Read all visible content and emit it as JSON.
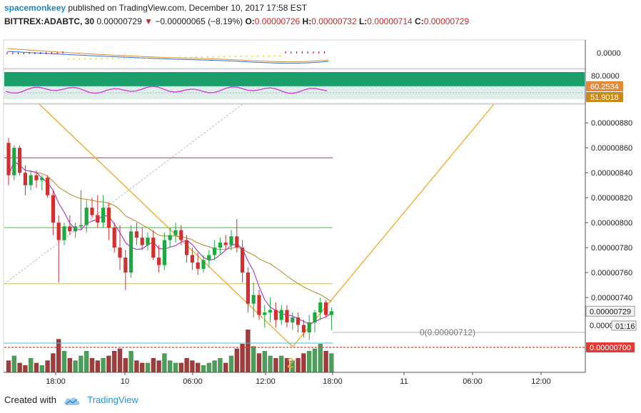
{
  "header": {
    "author": "spacemonkeey",
    "published_text": "published on TradingView.com, December 10, 2017 17:58 EST",
    "symbol": "BITTREX:ADABTC, 30",
    "last_price": "0.00000729",
    "change_arrow": "▼",
    "change": "−0.00000065 (−8.19%)",
    "o_label": "O:",
    "o_value": "0.00000726",
    "h_label": "H:",
    "h_value": "0.00000732",
    "l_label": "L:",
    "l_value": "0.00000714",
    "c_label": "C:",
    "c_value": "0.00000729"
  },
  "footer": {
    "created_with": "Created with",
    "brand": "TradingView"
  },
  "colors": {
    "bull": "#1ea83f",
    "bear": "#d32f2f",
    "vol_bull": "#2e8b3e",
    "vol_bear": "#8b1a1a",
    "orange": "#f5a623",
    "rsi": "#d040d8",
    "rsi_band": "#1a9e6a"
  },
  "chart_data": {
    "type": "candlestick",
    "y_axis": {
      "min": 6.8e-06,
      "max": 8.95e-06,
      "ticks": [
        "0.00000880",
        "0.00000860",
        "0.00000840",
        "0.00000820",
        "0.00000800",
        "0.00000780",
        "0.00000760",
        "0.00000740"
      ],
      "tick_values": [
        8.8e-06,
        8.6e-06,
        8.4e-06,
        8.2e-06,
        8e-06,
        7.8e-06,
        7.6e-06,
        7.4e-06
      ]
    },
    "x_axis": {
      "labels": [
        "18:00",
        "10",
        "06:00",
        "12:00",
        "18:00",
        "11",
        "06:00",
        "12:00"
      ]
    },
    "price_labels": {
      "last": "0.00000729",
      "countdown": "01:16",
      "support": "0.00000700",
      "zero": "0.0000"
    },
    "macd_panel": {
      "axis_label": "0.0000"
    },
    "rsi_panel": {
      "upper": "80.0000",
      "value1": "60.2534",
      "value2": "51.9018"
    },
    "annotations": {
      "fib_text": "0(0.00000712)",
      "wave_label": "2"
    },
    "horizontal_levels": {
      "red": 8.52e-06,
      "green": 7.96e-06,
      "yellow": 7.51e-06,
      "support": 7e-06,
      "fib0": 7.12e-06
    },
    "candles": [
      {
        "o": 864,
        "h": 868,
        "l": 830,
        "c": 838
      },
      {
        "o": 838,
        "h": 862,
        "l": 834,
        "c": 860
      },
      {
        "o": 860,
        "h": 862,
        "l": 838,
        "c": 840
      },
      {
        "o": 840,
        "h": 846,
        "l": 822,
        "c": 830
      },
      {
        "o": 830,
        "h": 842,
        "l": 826,
        "c": 838
      },
      {
        "o": 838,
        "h": 842,
        "l": 828,
        "c": 834
      },
      {
        "o": 834,
        "h": 838,
        "l": 826,
        "c": 836
      },
      {
        "o": 836,
        "h": 838,
        "l": 820,
        "c": 822
      },
      {
        "o": 822,
        "h": 826,
        "l": 790,
        "c": 800
      },
      {
        "o": 800,
        "h": 806,
        "l": 752,
        "c": 786
      },
      {
        "o": 786,
        "h": 800,
        "l": 782,
        "c": 797
      },
      {
        "o": 797,
        "h": 806,
        "l": 790,
        "c": 793
      },
      {
        "o": 793,
        "h": 800,
        "l": 788,
        "c": 797
      },
      {
        "o": 797,
        "h": 826,
        "l": 794,
        "c": 798
      },
      {
        "o": 798,
        "h": 818,
        "l": 792,
        "c": 812
      },
      {
        "o": 812,
        "h": 820,
        "l": 804,
        "c": 806
      },
      {
        "o": 806,
        "h": 822,
        "l": 796,
        "c": 800
      },
      {
        "o": 800,
        "h": 822,
        "l": 796,
        "c": 812
      },
      {
        "o": 812,
        "h": 816,
        "l": 786,
        "c": 796
      },
      {
        "o": 796,
        "h": 800,
        "l": 776,
        "c": 780
      },
      {
        "o": 780,
        "h": 798,
        "l": 762,
        "c": 772
      },
      {
        "o": 772,
        "h": 778,
        "l": 746,
        "c": 760
      },
      {
        "o": 760,
        "h": 798,
        "l": 756,
        "c": 793
      },
      {
        "o": 793,
        "h": 800,
        "l": 782,
        "c": 788
      },
      {
        "o": 788,
        "h": 796,
        "l": 778,
        "c": 782
      },
      {
        "o": 782,
        "h": 792,
        "l": 778,
        "c": 788
      },
      {
        "o": 788,
        "h": 794,
        "l": 770,
        "c": 772
      },
      {
        "o": 772,
        "h": 782,
        "l": 760,
        "c": 766
      },
      {
        "o": 766,
        "h": 792,
        "l": 762,
        "c": 786
      },
      {
        "o": 786,
        "h": 796,
        "l": 780,
        "c": 790
      },
      {
        "o": 790,
        "h": 800,
        "l": 784,
        "c": 794
      },
      {
        "o": 794,
        "h": 798,
        "l": 782,
        "c": 786
      },
      {
        "o": 786,
        "h": 790,
        "l": 768,
        "c": 774
      },
      {
        "o": 774,
        "h": 780,
        "l": 762,
        "c": 768
      },
      {
        "o": 768,
        "h": 776,
        "l": 758,
        "c": 763
      },
      {
        "o": 763,
        "h": 774,
        "l": 760,
        "c": 770
      },
      {
        "o": 770,
        "h": 778,
        "l": 764,
        "c": 774
      },
      {
        "o": 774,
        "h": 786,
        "l": 770,
        "c": 780
      },
      {
        "o": 780,
        "h": 788,
        "l": 774,
        "c": 784
      },
      {
        "o": 784,
        "h": 790,
        "l": 778,
        "c": 782
      },
      {
        "o": 782,
        "h": 794,
        "l": 778,
        "c": 789
      },
      {
        "o": 789,
        "h": 803,
        "l": 776,
        "c": 780
      },
      {
        "o": 780,
        "h": 786,
        "l": 752,
        "c": 760
      },
      {
        "o": 760,
        "h": 764,
        "l": 728,
        "c": 735
      },
      {
        "o": 735,
        "h": 752,
        "l": 724,
        "c": 742
      },
      {
        "o": 742,
        "h": 746,
        "l": 722,
        "c": 726
      },
      {
        "o": 726,
        "h": 734,
        "l": 716,
        "c": 728
      },
      {
        "o": 728,
        "h": 740,
        "l": 720,
        "c": 730
      },
      {
        "o": 730,
        "h": 736,
        "l": 716,
        "c": 722
      },
      {
        "o": 722,
        "h": 734,
        "l": 718,
        "c": 730
      },
      {
        "o": 730,
        "h": 734,
        "l": 716,
        "c": 720
      },
      {
        "o": 720,
        "h": 728,
        "l": 714,
        "c": 724
      },
      {
        "o": 724,
        "h": 728,
        "l": 712,
        "c": 718
      },
      {
        "o": 718,
        "h": 722,
        "l": 708,
        "c": 712
      },
      {
        "o": 712,
        "h": 726,
        "l": 706,
        "c": 720
      },
      {
        "o": 720,
        "h": 730,
        "l": 712,
        "c": 728
      },
      {
        "o": 728,
        "h": 740,
        "l": 722,
        "c": 736
      },
      {
        "o": 736,
        "h": 738,
        "l": 724,
        "c": 726
      },
      {
        "o": 726,
        "h": 732,
        "l": 714,
        "c": 729
      }
    ],
    "volumes": [
      5,
      7,
      4,
      3,
      6,
      4,
      3,
      5,
      8,
      14,
      9,
      6,
      5,
      7,
      9,
      6,
      5,
      6,
      7,
      9,
      10,
      6,
      9,
      5,
      4,
      4,
      6,
      5,
      8,
      5,
      4,
      4,
      6,
      5,
      4,
      3,
      4,
      5,
      6,
      4,
      7,
      10,
      12,
      18,
      11,
      8,
      9,
      7,
      6,
      7,
      6,
      5,
      6,
      8,
      9,
      10,
      12,
      9,
      8
    ]
  }
}
